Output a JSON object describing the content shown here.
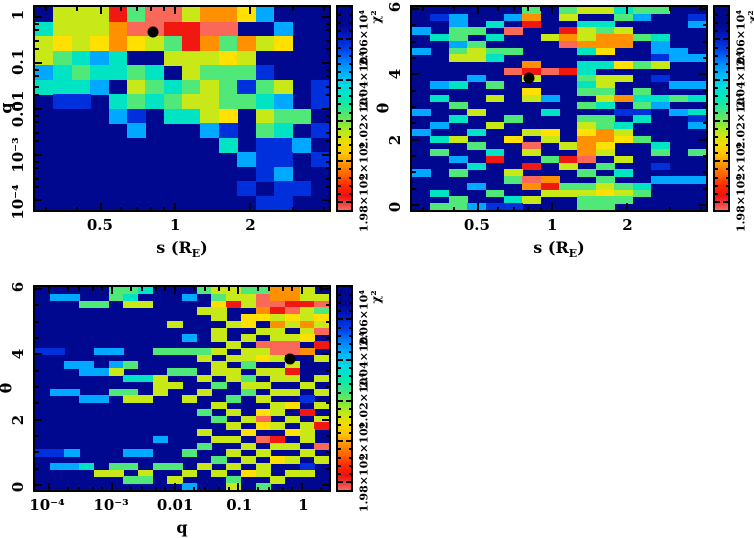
{
  "figure": {
    "description": "Three chi-squared heat maps of a binary-lens fit over parameters s, q and theta; black dot marks the best-fit model in each projection.",
    "background": "#ffffff",
    "marker_color": "#000000",
    "colormap": {
      "0": "#000890",
      "1": "#0030dc",
      "2": "#00a8ff",
      "3": "#00e4c4",
      "4": "#50e878",
      "5": "#c8e818",
      "6": "#ffe000",
      "7": "#ff9000",
      "8": "#fa685a",
      "9": "#f01810"
    },
    "legend_chi2_by_code": {
      "0": "> 2.064e4 (dark navy, incl. unsampled)",
      "1": "about 2.058e4",
      "2": "about 2.050e4",
      "3": "about 2.043e4",
      "4": "about 2.036e4",
      "5": "about 2.026e4",
      "6": "about 2.017e4",
      "7": "about 2.004e4",
      "9": "about 1.988e4",
      "8": "about 1.978e4 (lowest chi2, best fit)"
    },
    "colorbar": {
      "title": "χ²",
      "min": 19760,
      "max": 20760,
      "tick_values": [
        19800,
        20000,
        20200,
        20400,
        20600
      ],
      "tick_labels": [
        "1.98×10⁴",
        "2×10⁴",
        "2.02×10⁴",
        "2.04×10⁴",
        "2.06×10⁴"
      ],
      "minor_tick_step": 40,
      "gradient_top_to_bottom": [
        "#000890 0%",
        "#000890 9%",
        "#0018c0 14%",
        "#0040e8 21%",
        "#0080ff 27%",
        "#00b4ff 33%",
        "#00dce0 39%",
        "#00e8b8 45%",
        "#38e888 51%",
        "#80e840 57%",
        "#c0e818 62%",
        "#f0dc00 67%",
        "#ffc800 72%",
        "#ff9800 77%",
        "#ff6000 83%",
        "#ff2800 88%",
        "#ee1010 93%",
        "#f34040 97%",
        "#fa6a5a 100%"
      ]
    }
  },
  "chart_data": [
    {
      "type": "heatmap",
      "panel": "top-left",
      "title": "",
      "xlabel": "s (R_E)",
      "xlabel_html": "s (R<sub>E</sub>)",
      "ylabel": "q",
      "x_axis": {
        "scale": "log",
        "min": 0.27,
        "max": 4.2,
        "ticks": [
          {
            "value": 0.5,
            "label": "0.5"
          },
          {
            "value": 1,
            "label": "1"
          },
          {
            "value": 2,
            "label": "2"
          }
        ],
        "minor_ticks": [
          0.3,
          0.4,
          0.6,
          0.7,
          0.8,
          0.9,
          3,
          4
        ]
      },
      "y_axis": {
        "scale": "log",
        "min": 6.2e-05,
        "max": 1.62,
        "ticks": [
          {
            "value": 1,
            "label": "1"
          },
          {
            "value": 0.1,
            "label": "0.1"
          },
          {
            "value": 0.01,
            "label": "0.01"
          },
          {
            "value": 0.001,
            "label": "10⁻³"
          },
          {
            "value": 0.0001,
            "label": "10⁻⁴"
          }
        ],
        "minor_ticks": [
          0.7,
          0.5,
          0.3,
          0.2,
          0.07,
          0.05,
          0.03,
          0.02,
          0.007,
          0.005,
          0.003,
          0.002,
          0.0007,
          0.0005,
          0.0003,
          0.0002
        ]
      },
      "n_cols": 16,
      "n_rows": 14,
      "grid_rows_top_to_bottom": [
        "0555948857762000",
        "3555788998800200",
        "5656765497475600",
        "5432300555650000",
        "2343343054441000",
        "3332054345414501",
        "0110343455443201",
        "0000210335605440",
        "0000020002104301",
        "0000000000301120",
        "0000000000021101",
        "0000000000001200",
        "0000000000010110",
        "0000000000001100"
      ],
      "best_fit": {
        "x_frac": 0.4,
        "y_frac": 0.121,
        "s": 0.8,
        "q": 0.5
      }
    },
    {
      "type": "heatmap",
      "panel": "top-right",
      "title": "",
      "xlabel": "s (R_E)",
      "xlabel_html": "s (R<sub>E</sub>)",
      "ylabel": "θ",
      "x_axis": {
        "scale": "log",
        "min": 0.27,
        "max": 4.2,
        "ticks": [
          {
            "value": 0.5,
            "label": "0.5"
          },
          {
            "value": 1,
            "label": "1"
          },
          {
            "value": 2,
            "label": "2"
          }
        ],
        "minor_ticks": [
          0.3,
          0.4,
          0.6,
          0.7,
          0.8,
          0.9,
          3,
          4
        ]
      },
      "y_axis": {
        "scale": "linear",
        "min": -0.15,
        "max": 6.06,
        "ticks": [
          {
            "value": 6,
            "label": "6"
          },
          {
            "value": 4,
            "label": "4"
          },
          {
            "value": 2,
            "label": "2"
          },
          {
            "value": 0,
            "label": "0"
          }
        ],
        "minor_ticks": [
          0.5,
          1,
          1.5,
          2.5,
          3,
          3.5,
          4.5,
          5,
          5.5
        ]
      },
      "n_cols": 16,
      "n_rows": 30,
      "grid_rows_top_to_bottom": [
        "0000004045534400",
        "0120027050042001",
        "0020309003300002",
        "2044080095450000",
        "0340300575774300",
        "0024000087770200",
        "2045440003600220",
        "0055300000000122",
        "0000007003364500",
        "0000089893000000",
        "0002005004550100",
        "0230400003500022",
        "0000006004404000",
        "0300505200573343",
        "0040000004304200",
        "2005000300011023",
        "0030040004403001",
        "0200500005430002",
        "2003005606750000",
        "0350060507764000",
        "0004008057600300",
        "0400305007500404",
        "0020900498050000",
        "0003009050400100",
        "2040050004030000",
        "0000048700400222",
        "0002007944543000",
        "0300400555654000",
        "0040035004440000",
        "0442110004400000"
      ],
      "best_fit": {
        "x_frac": 0.399,
        "y_frac": 0.348,
        "s": 0.8,
        "theta": 3.9
      }
    },
    {
      "type": "heatmap",
      "panel": "bottom-left",
      "title": "",
      "xlabel": "q",
      "xlabel_html": "q",
      "ylabel": "θ",
      "x_axis": {
        "scale": "log",
        "min": 6.05e-05,
        "max": 2.7,
        "ticks": [
          {
            "value": 0.0001,
            "label": "10⁻⁴"
          },
          {
            "value": 0.001,
            "label": "10⁻³"
          },
          {
            "value": 0.01,
            "label": "0.01"
          },
          {
            "value": 0.1,
            "label": "0.1"
          },
          {
            "value": 1,
            "label": "1"
          }
        ],
        "minor_ticks": [
          0.0002,
          0.0003,
          0.0005,
          0.0007,
          0.002,
          0.003,
          0.005,
          0.007,
          0.02,
          0.03,
          0.05,
          0.07,
          0.2,
          0.3,
          0.5,
          0.7,
          2
        ]
      },
      "y_axis": {
        "scale": "linear",
        "min": -0.15,
        "max": 6.06,
        "ticks": [
          {
            "value": 6,
            "label": "6"
          },
          {
            "value": 4,
            "label": "4"
          },
          {
            "value": 2,
            "label": "2"
          },
          {
            "value": 0,
            "label": "0"
          }
        ],
        "minor_ticks": [
          0.5,
          1,
          1.5,
          2.5,
          3,
          3.5,
          4.5,
          5,
          5.5
        ]
      },
      "n_cols": 20,
      "n_rows": 30,
      "grid_rows_top_to_bottom": [
        "00000443000455447750",
        "02200430002045587755",
        "00044055000069588998",
        "00000000000550079854",
        "00000000000050665656",
        "00000000050005607575",
        "00000000000050055058",
        "00000000002050505560",
        "00000000000005088809",
        "11002200444450558870",
        "00000000000505565005",
        "00220240000050400500",
        "00022500044055055900",
        "00000033500505405505",
        "00000000550040550050",
        "02200440500500405505",
        "00022055005004050010",
        "00000000000050005605",
        "00000000000405065090",
        "00000000000040580505",
        "00000000000005065059",
        "00000000000500600650",
        "00000000200055089050",
        "00000000000400505508",
        "11200022004005050050",
        "00000000000040506505",
        "02230440440505050010",
        "00005505005050650550",
        "00000044050004005000",
        "00000000002005040000"
      ],
      "best_fit": {
        "x_frac": 0.869,
        "y_frac": 0.353,
        "q": 0.5,
        "theta": 3.9
      }
    }
  ]
}
